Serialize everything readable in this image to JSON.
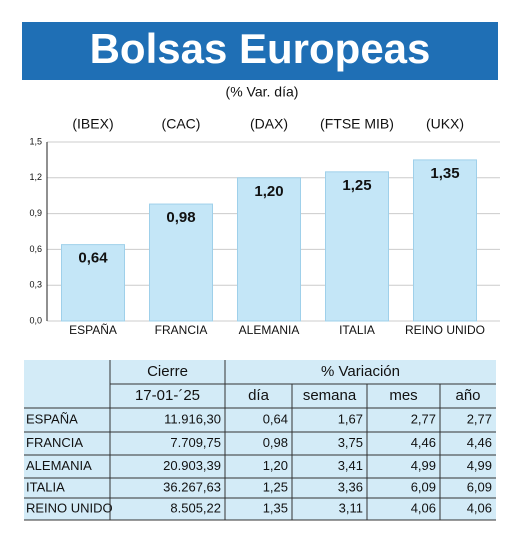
{
  "chart_data": {
    "type": "bar",
    "title": "Bolsas Europeas",
    "subtitle": "(% Var. día)",
    "index_labels": [
      "(IBEX)",
      "(CAC)",
      "(DAX)",
      "(FTSE MIB)",
      "(UKX)"
    ],
    "categories": [
      "ESPAÑA",
      "FRANCIA",
      "ALEMANIA",
      "ITALIA",
      "REINO UNIDO"
    ],
    "values": [
      0.64,
      0.98,
      1.2,
      1.25,
      1.35
    ],
    "value_labels": [
      "0,64",
      "0,98",
      "1,20",
      "1,25",
      "1,35"
    ],
    "color": "#c4e6f7",
    "ylim": [
      0,
      1.5
    ],
    "yticks": [
      {
        "value": 0,
        "label": "0,0"
      },
      {
        "value": 0.3,
        "label": "0,3"
      },
      {
        "value": 0.6,
        "label": "0,6"
      },
      {
        "value": 0.9,
        "label": "0,9"
      },
      {
        "value": 1.2,
        "label": "1,2"
      },
      {
        "value": 1.5,
        "label": "1,5"
      }
    ],
    "grid": true
  },
  "table": {
    "header": [
      "Cierre",
      "% Variación"
    ],
    "columns": [
      "17-01-´25",
      "día",
      "semana",
      "mes",
      "año"
    ],
    "rows": [
      [
        "ESPAÑA",
        "11.916,30",
        "0,64",
        "1,67",
        "2,77",
        "2,77"
      ],
      [
        "FRANCIA",
        "7.709,75",
        "0,98",
        "3,75",
        "4,46",
        "4,46"
      ],
      [
        "ALEMANIA",
        "20.903,39",
        "1,20",
        "3,41",
        "4,99",
        "4,99"
      ],
      [
        "ITALIA",
        "36.267,63",
        "1,25",
        "3,36",
        "6,09",
        "6,09"
      ],
      [
        "REINO UNIDO",
        "8.505,22",
        "1,35",
        "3,11",
        "4,06",
        "4,06"
      ]
    ]
  }
}
